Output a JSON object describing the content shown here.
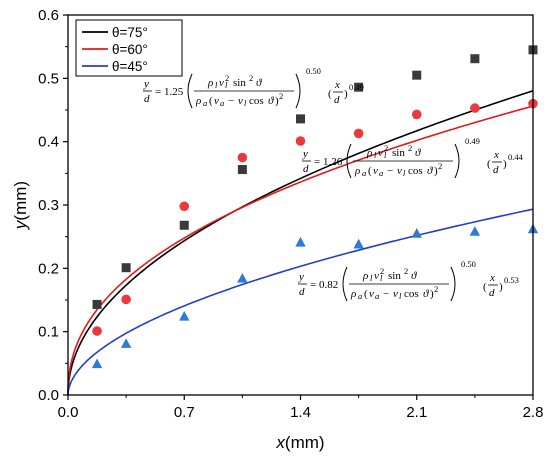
{
  "chart_data": {
    "type": "scatter",
    "title": "",
    "xlabel": "x(mm)",
    "ylabel": "y(mm)",
    "xlabel_var": "x",
    "xlabel_unit": "(mm)",
    "ylabel_var": "y",
    "ylabel_unit": "(mm)",
    "xlim": [
      0,
      2.8
    ],
    "ylim": [
      0,
      0.6
    ],
    "xticks": [
      "0.0",
      "0.7",
      "1.4",
      "2.1",
      "2.8"
    ],
    "yticks": [
      "0.0",
      "0.1",
      "0.2",
      "0.3",
      "0.4",
      "0.5",
      "0.6"
    ],
    "grid": false,
    "legend_position": "top-left",
    "series": [
      {
        "name": "θ=75°",
        "color": "#000000",
        "marker": "square",
        "marker_color": "#3a3a3a",
        "x": [
          0.175,
          0.35,
          0.7,
          1.05,
          1.4,
          1.75,
          2.1,
          2.45,
          2.8
        ],
        "y": [
          0.143,
          0.201,
          0.268,
          0.356,
          0.436,
          0.486,
          0.505,
          0.531,
          0.545
        ],
        "fit": {
          "coef": 0.29,
          "exp": 0.49
        }
      },
      {
        "name": "θ=60°",
        "color": "#e31a1c",
        "marker": "circle",
        "marker_color": "#e8393d",
        "x": [
          0.175,
          0.35,
          0.7,
          1.05,
          1.4,
          1.75,
          2.1,
          2.45,
          2.8
        ],
        "y": [
          0.101,
          0.151,
          0.298,
          0.375,
          0.401,
          0.413,
          0.443,
          0.453,
          0.46
        ],
        "fit": {
          "coef": 0.29,
          "exp": 0.44
        }
      },
      {
        "name": "θ=45°",
        "color": "#1f3fcc",
        "marker": "triangle",
        "marker_color": "#2e7ad6",
        "x": [
          0.175,
          0.35,
          0.7,
          1.05,
          1.4,
          1.75,
          2.1,
          2.45,
          2.8
        ],
        "y": [
          0.049,
          0.081,
          0.124,
          0.184,
          0.241,
          0.238,
          0.255,
          0.258,
          0.262
        ],
        "fit": {
          "coef": 0.17,
          "exp": 0.53
        }
      }
    ],
    "annotations": [
      {
        "coef": "1.25",
        "outer_exp": "0.50",
        "ratio_exp": "0.49"
      },
      {
        "coef": "1.26",
        "outer_exp": "0.49",
        "ratio_exp": "0.44"
      },
      {
        "coef": "0.82",
        "outer_exp": "0.50",
        "ratio_exp": "0.53"
      }
    ]
  }
}
